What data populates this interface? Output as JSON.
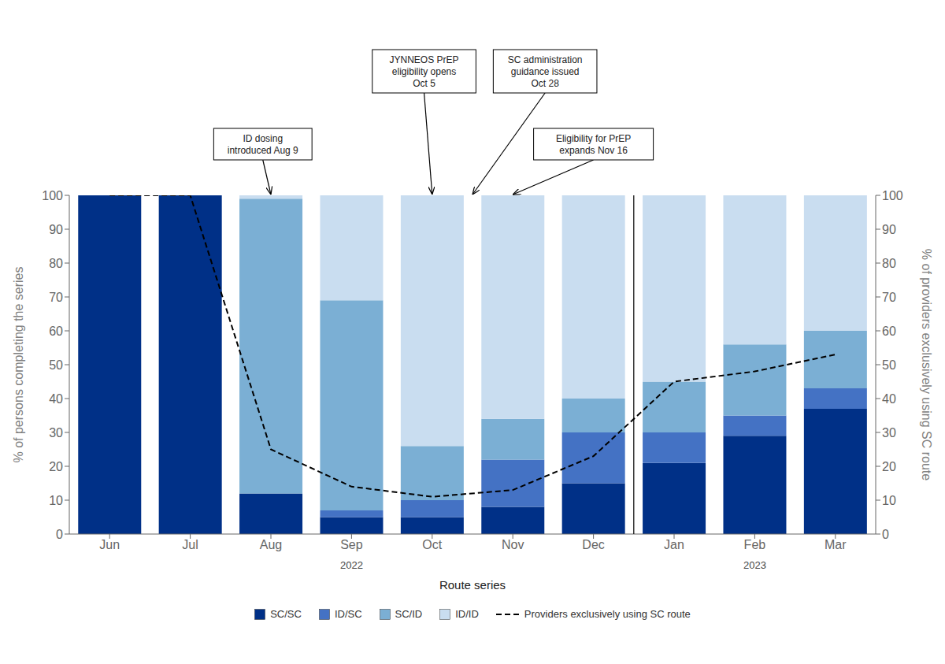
{
  "chart_data": {
    "type": "bar",
    "stacked": true,
    "categories": [
      "Jun",
      "Jul",
      "Aug",
      "Sep",
      "Oct",
      "Nov",
      "Dec",
      "Jan",
      "Feb",
      "Mar"
    ],
    "series": [
      {
        "name": "SC/SC",
        "color": "#003087",
        "values": [
          100,
          100,
          12,
          5,
          5,
          8,
          15,
          21,
          29,
          37
        ]
      },
      {
        "name": "ID/SC",
        "color": "#4472c4",
        "values": [
          0,
          0,
          0,
          2,
          5,
          14,
          15,
          9,
          6,
          6
        ]
      },
      {
        "name": "SC/ID",
        "color": "#7bafd4",
        "values": [
          0,
          0,
          87,
          62,
          16,
          12,
          10,
          15,
          21,
          17
        ]
      },
      {
        "name": "ID/ID",
        "color": "#c9ddf0",
        "values": [
          0,
          0,
          1,
          31,
          74,
          66,
          60,
          55,
          44,
          40
        ]
      },
      {
        "name": "Providers exclusively using SC route",
        "type": "line",
        "line_style": "dashed",
        "color": "#000000",
        "axis": "y2",
        "values": [
          100,
          100,
          25,
          14,
          11,
          13,
          23,
          45,
          48,
          53
        ]
      }
    ],
    "xlabel": "Route series",
    "ylabel": "% of persons completing the series",
    "y2label": "% of providers exclusively using SC route",
    "ylim": [
      0,
      100
    ],
    "yticks": [
      0,
      10,
      20,
      30,
      40,
      50,
      60,
      70,
      80,
      90,
      100
    ],
    "y2lim": [
      0,
      100
    ],
    "y2ticks": [
      0,
      10,
      20,
      30,
      40,
      50,
      60,
      70,
      80,
      90,
      100
    ],
    "annotations": [
      "ID dosing\nintroduced Aug 9",
      "JYNNEOS PrEP\neligibility opens\nOct 5",
      "SC administration\nguidance issued\nOct 28",
      "Eligibility for PrEP\nexpands Nov 16",
      "2022",
      "2023"
    ],
    "grid": false,
    "legend": "bottom"
  }
}
